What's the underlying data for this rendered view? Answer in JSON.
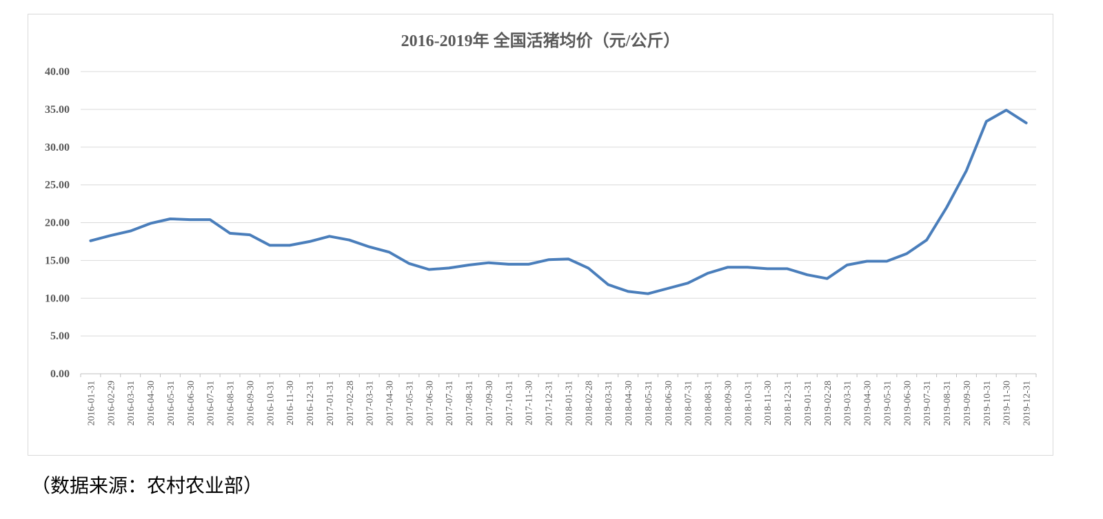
{
  "chart_data": {
    "type": "line",
    "title": "2016-2019年 全国活猪均价（元/公斤）",
    "xlabel": "",
    "ylabel": "",
    "ylim": [
      0,
      40
    ],
    "yticks": [
      "0.00",
      "5.00",
      "10.00",
      "15.00",
      "20.00",
      "25.00",
      "30.00",
      "35.00",
      "40.00"
    ],
    "grid": true,
    "legend": "none",
    "categories": [
      "2016-01-31",
      "2016-02-29",
      "2016-03-31",
      "2016-04-30",
      "2016-05-31",
      "2016-06-30",
      "2016-07-31",
      "2016-08-31",
      "2016-09-30",
      "2016-10-31",
      "2016-11-30",
      "2016-12-31",
      "2017-01-31",
      "2017-02-28",
      "2017-03-31",
      "2017-04-30",
      "2017-05-31",
      "2017-06-30",
      "2017-07-31",
      "2017-08-31",
      "2017-09-30",
      "2017-10-31",
      "2017-11-30",
      "2017-12-31",
      "2018-01-31",
      "2018-02-28",
      "2018-03-31",
      "2018-04-30",
      "2018-05-31",
      "2018-06-30",
      "2018-07-31",
      "2018-08-31",
      "2018-09-30",
      "2018-10-31",
      "2018-11-30",
      "2018-12-31",
      "2019-01-31",
      "2019-02-28",
      "2019-03-31",
      "2019-04-30",
      "2019-05-31",
      "2019-06-30",
      "2019-07-31",
      "2019-08-31",
      "2019-09-30",
      "2019-10-31",
      "2019-11-30",
      "2019-12-31"
    ],
    "series": [
      {
        "color": "#4a7ebb",
        "values": [
          17.6,
          18.3,
          18.9,
          19.9,
          20.5,
          20.4,
          20.4,
          18.6,
          18.4,
          17.0,
          17.0,
          17.5,
          18.2,
          17.7,
          16.8,
          16.1,
          14.6,
          13.8,
          14.0,
          14.4,
          14.7,
          14.5,
          14.5,
          15.1,
          15.2,
          14.0,
          11.8,
          10.9,
          10.6,
          11.3,
          12.0,
          13.3,
          14.1,
          14.1,
          13.9,
          13.9,
          13.1,
          12.6,
          14.4,
          14.9,
          14.9,
          15.9,
          17.7,
          22.0,
          26.9,
          33.4,
          34.9,
          33.2
        ]
      }
    ]
  },
  "source_note": "（数据来源：农村农业部）"
}
